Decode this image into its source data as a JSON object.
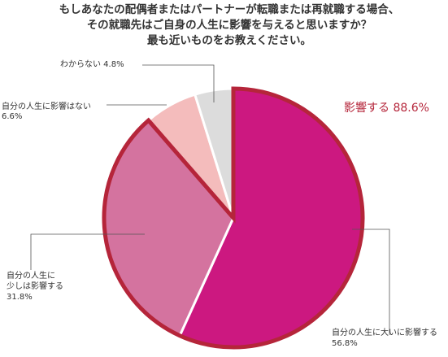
{
  "chart_data": {
    "type": "pie",
    "title_lines": [
      "もしあなたの配偶者またはパートナーが転職または再就職する場合、",
      "その就職先はご自身の人生に影響を与えると思いますか？",
      "最も近いものをお教えください。"
    ],
    "slices": [
      {
        "label_lines": [
          "自分の人生に大いに影響する",
          "56.8%"
        ],
        "value": 56.8,
        "color": "#cc1880"
      },
      {
        "label_lines": [
          "自分の人生に",
          "少しは影響する",
          "31.8%"
        ],
        "value": 31.8,
        "color": "#d4739f"
      },
      {
        "label_lines": [
          "自分の人生に影響はない",
          "6.6%"
        ],
        "value": 6.6,
        "color": "#f4bcbc"
      },
      {
        "label_lines": [
          "わからない 4.8%"
        ],
        "value": 4.8,
        "color": "#dcdcdc"
      }
    ],
    "group_highlight": {
      "label": "影響する 88.6%",
      "value": 88.6,
      "color": "#b5253a"
    }
  }
}
